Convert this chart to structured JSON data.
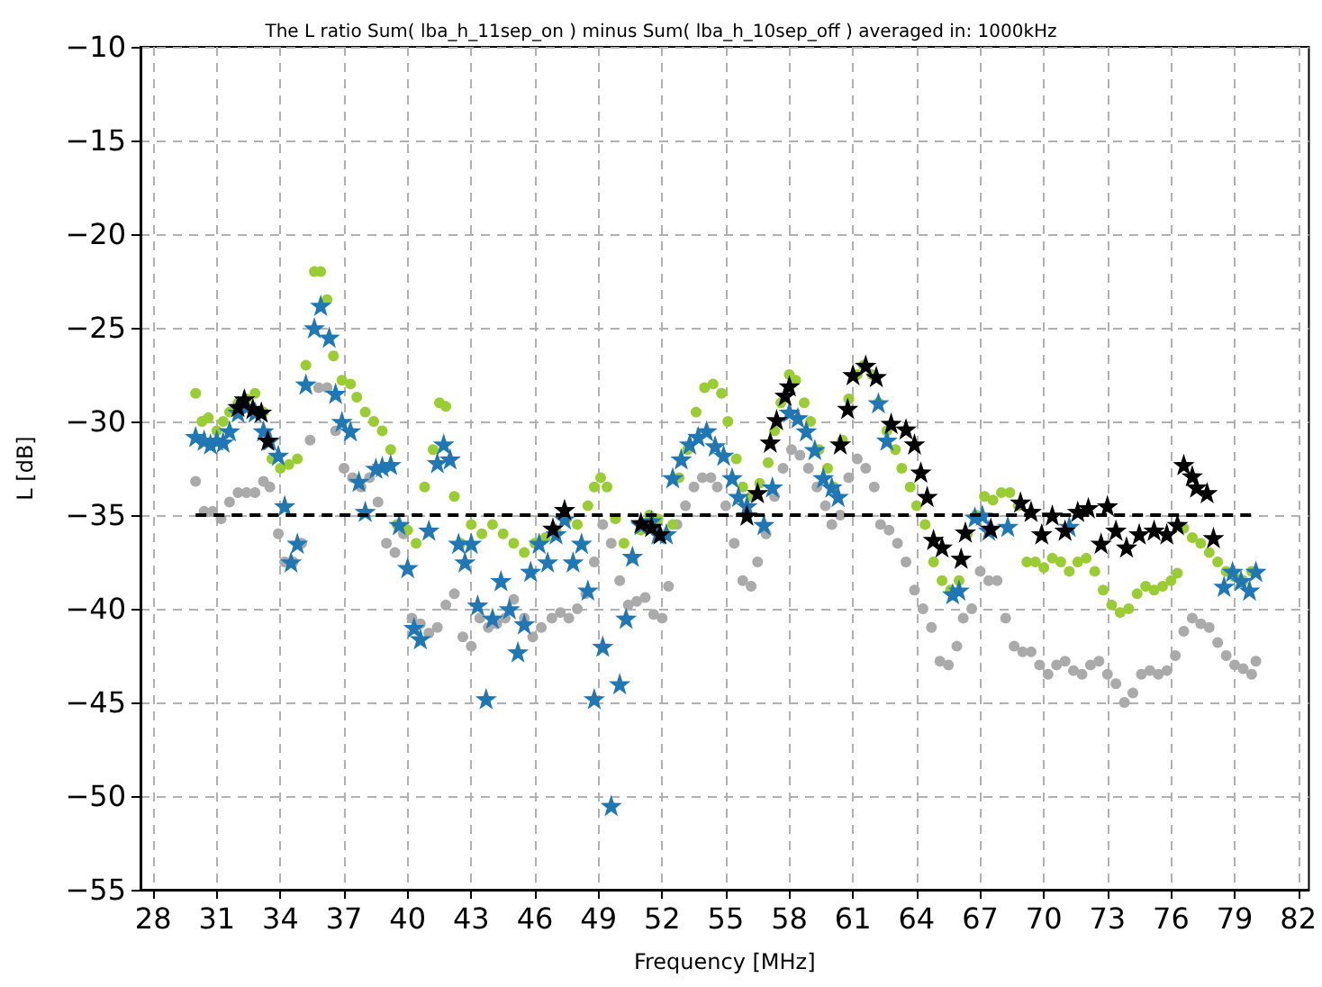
{
  "chart_data": {
    "type": "scatter",
    "title": "The L ratio Sum( lba_h_11sep_on ) minus Sum( lba_h_10sep_off ) averaged in: 1000kHz",
    "xlabel": "Frequency [MHz]",
    "ylabel": "L [dB]",
    "xlim": [
      27.4,
      82.5
    ],
    "xticks": [
      28,
      31,
      34,
      37,
      40,
      43,
      46,
      49,
      52,
      55,
      58,
      61,
      64,
      67,
      70,
      73,
      76,
      79,
      82
    ],
    "ylim": [
      -55,
      -10
    ],
    "yticks": [
      {
        "value": -55,
        "label": "−55"
      },
      {
        "value": -50,
        "label": "−50"
      },
      {
        "value": -45,
        "label": "−45"
      },
      {
        "value": -40,
        "label": "−40"
      },
      {
        "value": -35,
        "label": "−35"
      },
      {
        "value": -30,
        "label": "−30"
      },
      {
        "value": -25,
        "label": "−25"
      },
      {
        "value": -20,
        "label": "−20"
      },
      {
        "value": -15,
        "label": "−15"
      },
      {
        "value": -10,
        "label": "−10"
      }
    ],
    "grid": true,
    "ref_lines": [
      {
        "axis": "y",
        "value": -35,
        "color": "#000000",
        "line_style": "dashed"
      }
    ],
    "series": [
      {
        "color": "#aaaaaa",
        "marker": "circle",
        "x": [
          30,
          30.4,
          30.8,
          31.2,
          31.6,
          32,
          32.4,
          32.8,
          33.2,
          33.5,
          33.9,
          34.2,
          34.6,
          35,
          35.4,
          35.8,
          36.2,
          36.6,
          37,
          37.4,
          37.8,
          38.2,
          38.6,
          39,
          39.4,
          39.8,
          40.2,
          40.6,
          41,
          41.4,
          41.8,
          42.2,
          42.6,
          43,
          43.4,
          43.8,
          44.2,
          44.6,
          45,
          45.5,
          45.9,
          46.3,
          46.8,
          47.2,
          47.6,
          48,
          48.4,
          48.8,
          49.2,
          49.6,
          50,
          50.4,
          50.8,
          51.2,
          51.6,
          52,
          52.3,
          52.7,
          53.1,
          53.5,
          53.9,
          54.3,
          54.6,
          55,
          55.4,
          55.8,
          56.2,
          56.5,
          56.9,
          57.3,
          57.7,
          58.1,
          58.5,
          58.9,
          59.3,
          59.7,
          60,
          60.4,
          60.8,
          61.2,
          61.6,
          62,
          62.3,
          62.7,
          63.1,
          63.5,
          63.9,
          64.3,
          64.7,
          65.1,
          65.5,
          65.9,
          66.2,
          66.6,
          67,
          67.4,
          67.8,
          68.2,
          68.6,
          69,
          69.4,
          69.8,
          70.2,
          70.6,
          71,
          71.4,
          71.8,
          72.2,
          72.6,
          73,
          73.4,
          73.8,
          74.2,
          74.6,
          75,
          75.4,
          75.8,
          76.2,
          76.6,
          77,
          77.4,
          77.8,
          78.2,
          78.6,
          79,
          79.4,
          79.8,
          80
        ],
        "values": [
          -33.2,
          -34.8,
          -34.8,
          -35.2,
          -34.3,
          -33.8,
          -33.8,
          -33.8,
          -33.2,
          -33.5,
          -36,
          -37.5,
          -37.5,
          -36.5,
          -31,
          -28.2,
          -28.2,
          -30.5,
          -32.5,
          -33,
          -33.5,
          -33,
          -34.3,
          -36.5,
          -37,
          -36,
          -40.5,
          -40.8,
          -41.3,
          -41,
          -39.8,
          -39.2,
          -41.5,
          -42,
          -40.5,
          -41,
          -40.8,
          -40.5,
          -39.5,
          -40.5,
          -41.5,
          -41,
          -40.5,
          -40.2,
          -40.5,
          -40,
          -39.2,
          -37.5,
          -35.5,
          -36.5,
          -38.5,
          -39.8,
          -39.6,
          -39.4,
          -40.3,
          -40.5,
          -38.8,
          -35.5,
          -34.5,
          -33.5,
          -33,
          -33,
          -33.5,
          -34.5,
          -36.5,
          -38.5,
          -38.8,
          -37.5,
          -36,
          -34,
          -32.5,
          -31.5,
          -31.8,
          -32.5,
          -33.5,
          -34.5,
          -35.5,
          -35,
          -33,
          -32,
          -32.5,
          -33.5,
          -35.5,
          -35.8,
          -36.5,
          -37.5,
          -39,
          -40,
          -41,
          -42.8,
          -43,
          -42,
          -40.5,
          -40,
          -38,
          -38.5,
          -38.5,
          -40.5,
          -42,
          -42.3,
          -42.3,
          -43,
          -43.5,
          -43,
          -42.8,
          -43.3,
          -43.5,
          -43,
          -42.8,
          -43.5,
          -44,
          -45,
          -44.5,
          -43.5,
          -43.3,
          -43.5,
          -43.3,
          -42.5,
          -41.2,
          -40.5,
          -40.8,
          -41,
          -41.8,
          -42.5,
          -43,
          -43.2,
          -43.5,
          -42.8
        ]
      },
      {
        "color": "#9acd32",
        "marker": "circle",
        "x": [
          30,
          30.3,
          30.6,
          31,
          31.3,
          31.6,
          32,
          32.4,
          32.8,
          33.2,
          33.6,
          34,
          34.4,
          34.8,
          35.2,
          35.6,
          35.9,
          36.2,
          36.5,
          36.9,
          37.3,
          37.6,
          38,
          38.4,
          38.8,
          39.2,
          39.5,
          40,
          40.4,
          40.8,
          41.2,
          41.5,
          41.8,
          42.2,
          42.5,
          43,
          43.5,
          44,
          44.5,
          45,
          45.5,
          46,
          46.5,
          47,
          47.5,
          48,
          48.5,
          48.8,
          49.1,
          49.4,
          49.8,
          50.2,
          50.6,
          51,
          51.4,
          51.8,
          52.2,
          52.5,
          52.8,
          53.2,
          53.6,
          54,
          54.4,
          54.8,
          55.1,
          55.5,
          55.8,
          56.2,
          56.6,
          57,
          57.3,
          57.6,
          58,
          58.3,
          58.7,
          59,
          59.4,
          59.8,
          60.1,
          60.5,
          60.8,
          61.2,
          61.5,
          61.9,
          62.2,
          62.6,
          63,
          63.3,
          63.7,
          64,
          64.4,
          64.8,
          65.2,
          65.6,
          66,
          66.4,
          66.8,
          67.2,
          67.6,
          68,
          68.4,
          68.8,
          69.2,
          69.6,
          70,
          70.4,
          70.8,
          71.2,
          71.6,
          72,
          72.4,
          72.8,
          73.2,
          73.6,
          74,
          74.4,
          74.8,
          75.2,
          75.6,
          76,
          76.3,
          76.6,
          77,
          77.4,
          77.8,
          78.2,
          78.6,
          79,
          79.4,
          79.8
        ],
        "values": [
          -28.5,
          -30,
          -29.8,
          -30.5,
          -30,
          -29.5,
          -29,
          -28.8,
          -28.5,
          -29.5,
          -32,
          -32.5,
          -32.3,
          -32,
          -27,
          -22,
          -22,
          -23.5,
          -26.5,
          -27.8,
          -28,
          -28.7,
          -29.5,
          -30,
          -30.5,
          -31.5,
          -35.5,
          -35.8,
          -36.5,
          -33.5,
          -31.5,
          -29,
          -29.2,
          -34,
          -36.5,
          -35.5,
          -36,
          -35.5,
          -36,
          -36.5,
          -37,
          -36.5,
          -36.2,
          -35.8,
          -35.2,
          -35.5,
          -34.5,
          -33.5,
          -33,
          -33.5,
          -35.2,
          -36.5,
          -37.3,
          -35.8,
          -35,
          -35.2,
          -36,
          -35.5,
          -33,
          -31.5,
          -29.5,
          -28.2,
          -28,
          -28.5,
          -30,
          -32,
          -33.5,
          -34,
          -33.3,
          -32.2,
          -30.5,
          -29,
          -27.5,
          -27.8,
          -29,
          -30,
          -31.5,
          -32.5,
          -33.5,
          -31,
          -28.8,
          -27.5,
          -27,
          -27.5,
          -29,
          -30.5,
          -31.5,
          -32.5,
          -33.5,
          -34.5,
          -35.5,
          -37.5,
          -38.5,
          -39,
          -38.5,
          -36,
          -35,
          -34,
          -34.2,
          -33.8,
          -33.8,
          -34.5,
          -37.5,
          -37.5,
          -37.8,
          -37.3,
          -37.5,
          -38,
          -37.5,
          -37.3,
          -38,
          -39,
          -39.8,
          -40.2,
          -40,
          -39.2,
          -38.8,
          -39,
          -38.8,
          -38.5,
          -38.1,
          -35.7,
          -36.2,
          -36.5,
          -37,
          -37.5,
          -38,
          -38.3,
          -38.5,
          -38
        ]
      },
      {
        "color": "#1f77b4",
        "marker": "star",
        "x": [
          30,
          30.4,
          30.7,
          31,
          31.3,
          31.6,
          32,
          32.4,
          32.8,
          33.2,
          33.5,
          33.9,
          34.2,
          34.5,
          34.8,
          35.2,
          35.6,
          35.9,
          36.3,
          36.6,
          36.9,
          37.3,
          37.7,
          38,
          38.5,
          38.8,
          39.2,
          39.6,
          40,
          40.3,
          40.6,
          41,
          41.4,
          41.7,
          42,
          42.4,
          42.7,
          43,
          43.3,
          43.7,
          44,
          44.4,
          44.8,
          45.2,
          45.5,
          45.8,
          46.2,
          46.6,
          47,
          47.4,
          47.8,
          48.2,
          48.5,
          48.8,
          49.2,
          49.6,
          50,
          50.3,
          50.6,
          51,
          51.5,
          51.8,
          52.2,
          52.5,
          52.9,
          53.3,
          53.7,
          54.1,
          54.5,
          54.9,
          55.3,
          55.6,
          56,
          56.8,
          57.2,
          58,
          58.4,
          58.8,
          59.2,
          59.6,
          60,
          60.3,
          62.2,
          62.6,
          65.7,
          66,
          66.75,
          67.1,
          67.4,
          68.3,
          71.2,
          78.5,
          78.9,
          79.3,
          79.7,
          80
        ],
        "values": [
          -30.8,
          -31,
          -31.2,
          -31,
          -31.1,
          -30.5,
          -29.5,
          -29.2,
          -29.5,
          -30.5,
          -31,
          -31.8,
          -34.5,
          -37.5,
          -36.5,
          -28,
          -25,
          -23.8,
          -25.5,
          -28.5,
          -30,
          -30.5,
          -33.2,
          -34.8,
          -32.5,
          -32.4,
          -32.3,
          -35.5,
          -37.8,
          -41,
          -41.6,
          -35.8,
          -32.2,
          -31.2,
          -32,
          -36.5,
          -37.5,
          -36.5,
          -39.8,
          -44.8,
          -40.5,
          -38.5,
          -40,
          -42.3,
          -40.8,
          -38,
          -36.5,
          -37.5,
          -36,
          -35.2,
          -37.5,
          -36.5,
          -39,
          -44.8,
          -42,
          -50.5,
          -44,
          -40.5,
          -37.2,
          -35.5,
          -35.3,
          -36,
          -36,
          -33,
          -32,
          -31.2,
          -30.8,
          -30.5,
          -31.3,
          -31.8,
          -33,
          -34,
          -34.5,
          -35.5,
          -33.5,
          -29.5,
          -29.8,
          -30.5,
          -31.5,
          -33,
          -33.5,
          -34,
          -29,
          -31,
          -39.2,
          -39,
          -35.1,
          -35,
          -35.8,
          -35.6,
          -35.6,
          -38.8,
          -38,
          -38.5,
          -39,
          -38
        ]
      },
      {
        "color": "#000000",
        "marker": "star",
        "x": [
          32,
          32.3,
          32.7,
          33.1,
          33.4,
          46.85,
          47.4,
          51,
          51.5,
          51.9,
          56,
          56.5,
          57.1,
          57.4,
          57.8,
          58,
          60.4,
          60.75,
          61,
          61.6,
          62.1,
          62.8,
          63.5,
          63.9,
          64.2,
          64.5,
          64.8,
          65.2,
          66.1,
          66.3,
          67.5,
          68.9,
          69.4,
          69.9,
          70.4,
          71,
          71.6,
          72.1,
          72.7,
          73,
          73.4,
          73.9,
          74.5,
          75.2,
          75.8,
          76.3,
          76.6,
          77,
          77.2,
          77.7,
          78
        ],
        "values": [
          -29.2,
          -28.8,
          -29.3,
          -29.5,
          -31,
          -35.7,
          -34.7,
          -35.4,
          -35.6,
          -36,
          -35,
          -33.8,
          -31.1,
          -29.9,
          -28.6,
          -28.1,
          -31.2,
          -29.3,
          -27.5,
          -27,
          -27.6,
          -30.1,
          -30.4,
          -31.2,
          -32.7,
          -34,
          -36.3,
          -36.7,
          -37.3,
          -35.9,
          -35.7,
          -34.3,
          -34.8,
          -36,
          -35,
          -35.8,
          -34.8,
          -34.6,
          -36.5,
          -34.5,
          -35.8,
          -36.7,
          -36,
          -35.8,
          -36,
          -35.5,
          -32.3,
          -32.9,
          -33.5,
          -33.8,
          -36.2
        ]
      }
    ]
  }
}
